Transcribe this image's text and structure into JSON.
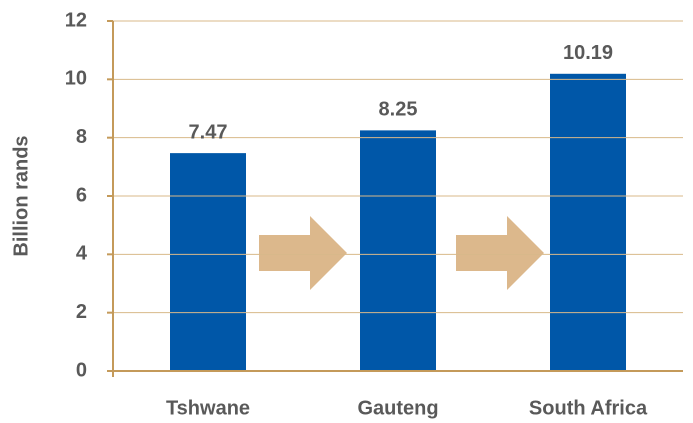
{
  "chart_data": {
    "type": "bar",
    "y_label": "Billion rands",
    "categories": [
      "Tshwane",
      "Gauteng",
      "South Africa"
    ],
    "values": [
      7.47,
      8.25,
      10.19
    ],
    "color": "#0057a8",
    "ylim": [
      0,
      12
    ],
    "yticks": [
      0,
      2,
      4,
      6,
      8,
      10,
      12
    ],
    "grid": true
  }
}
